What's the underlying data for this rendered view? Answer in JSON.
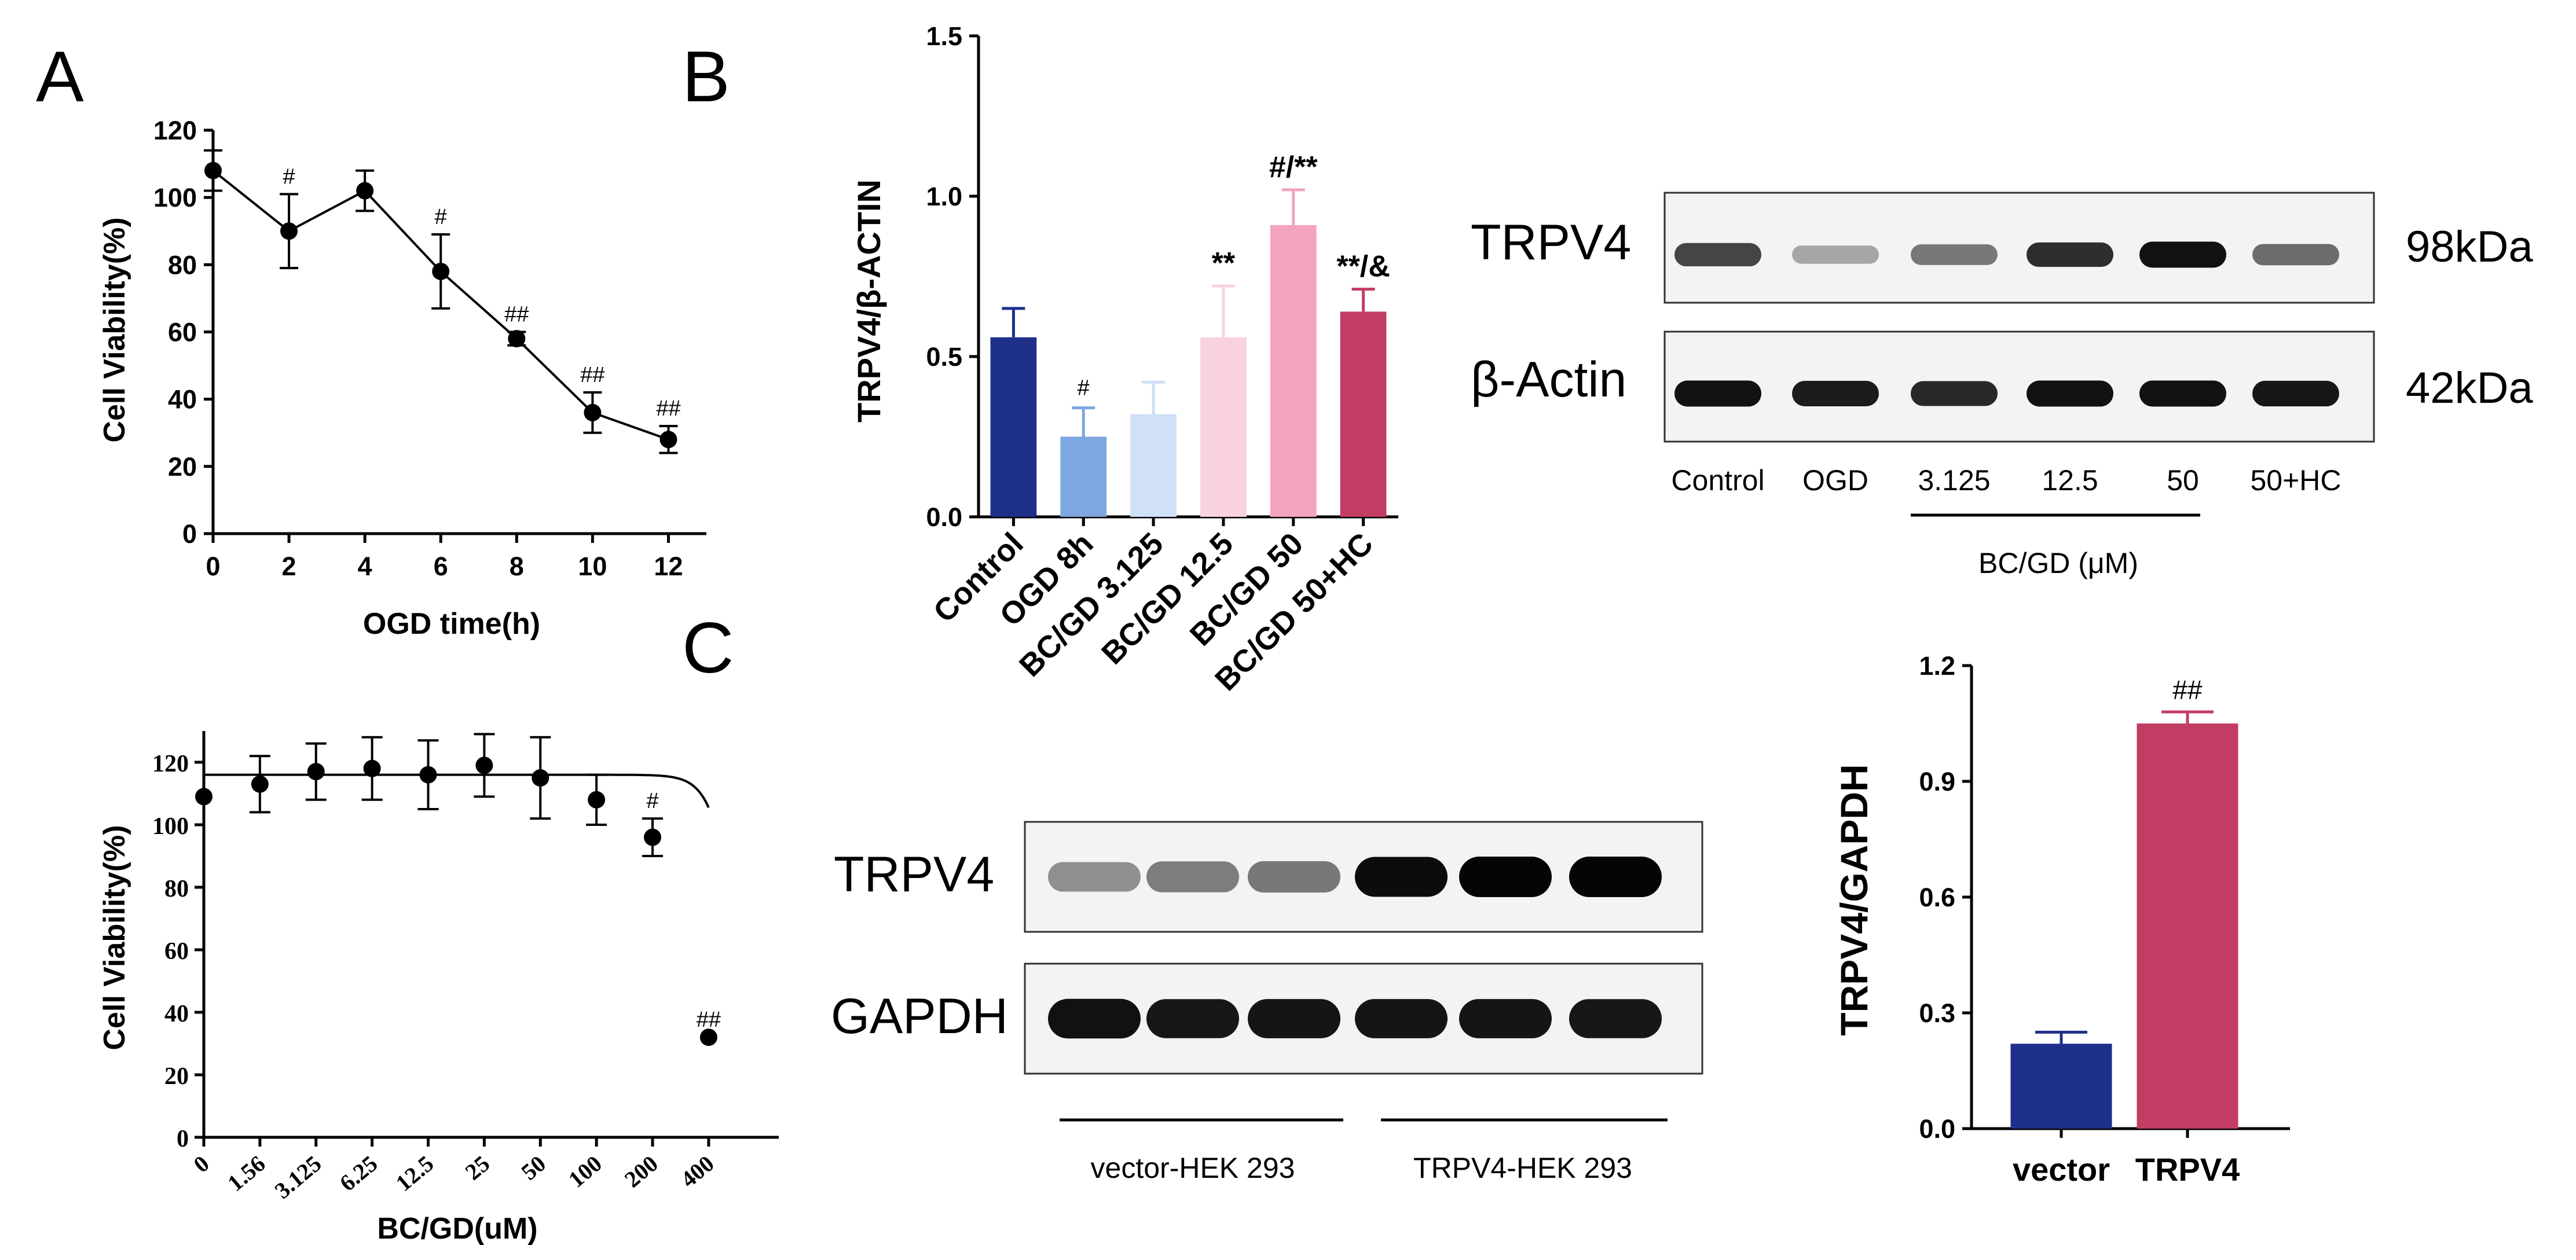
{
  "panels": {
    "A": "A",
    "B": "B",
    "C": "C"
  },
  "chart_data": [
    {
      "id": "A",
      "type": "line",
      "xlabel": "OGD time(h)",
      "ylabel": "Cell Viability(%)",
      "xlim": [
        0,
        13
      ],
      "ylim": [
        0,
        120
      ],
      "xticks": [
        "0",
        "2",
        "4",
        "6",
        "8",
        "10",
        "12"
      ],
      "yticks": [
        "0",
        "20",
        "40",
        "60",
        "80",
        "100",
        "120"
      ],
      "series": [
        {
          "x": [
            0,
            2,
            4,
            6,
            8,
            10,
            12
          ],
          "values": [
            108,
            90,
            102,
            78,
            58,
            36,
            28
          ],
          "errors": [
            6,
            11,
            6,
            11,
            2,
            6,
            4
          ],
          "annotations": [
            "",
            "#",
            "",
            "#",
            "##",
            "##",
            "##"
          ]
        }
      ]
    },
    {
      "id": "B",
      "type": "bar",
      "ylabel": "TRPV4/β-ACTIN",
      "ylim": [
        0,
        1.5
      ],
      "yticks": [
        "0.0",
        "0.5",
        "1.0",
        "1.5"
      ],
      "categories": [
        "Control",
        "OGD 8h",
        "BC/GD 3.125",
        "BC/GD 12.5",
        "BC/GD 50",
        "BC/GD 50+HC"
      ],
      "values": [
        0.56,
        0.25,
        0.32,
        0.56,
        0.91,
        0.64
      ],
      "errors": [
        0.09,
        0.09,
        0.1,
        0.16,
        0.11,
        0.07
      ],
      "colors": [
        "#1e2f8a",
        "#7ea6e0",
        "#cfe0f7",
        "#f8d3df",
        "#f3a3bd",
        "#c23d63"
      ],
      "annotations": [
        "",
        "#",
        "",
        "**",
        "#/**",
        "**/&"
      ]
    },
    {
      "id": "C",
      "type": "scatter",
      "xlabel": "BC/GD(uM)",
      "ylabel": "Cell Viability(%)",
      "ylim": [
        0,
        130
      ],
      "xticks": [
        "0",
        "1.56",
        "3.125",
        "6.25",
        "12.5",
        "25",
        "50",
        "100",
        "200",
        "400"
      ],
      "yticks": [
        "0",
        "20",
        "40",
        "60",
        "80",
        "100",
        "120"
      ],
      "series": [
        {
          "values": [
            109,
            113,
            117,
            118,
            116,
            119,
            115,
            108,
            96,
            32
          ],
          "errors": [
            0,
            9,
            9,
            10,
            11,
            10,
            13,
            8,
            6,
            0
          ],
          "annotations": [
            "",
            "",
            "",
            "",
            "",
            "",
            "",
            "",
            "#",
            "##"
          ]
        }
      ]
    },
    {
      "id": "D",
      "type": "bar",
      "ylabel": "TRPV4/GAPDH",
      "ylim": [
        0,
        1.2
      ],
      "yticks": [
        "0.0",
        "0.3",
        "0.6",
        "0.9",
        "1.2"
      ],
      "categories": [
        "vector",
        "TRPV4"
      ],
      "values": [
        0.22,
        1.05
      ],
      "errors": [
        0.03,
        0.03
      ],
      "colors": [
        "#1e2f8a",
        "#c23d63"
      ],
      "annotations": [
        "",
        "##"
      ]
    }
  ],
  "blots": {
    "top": {
      "rows": [
        {
          "label": "TRPV4",
          "kda": "98kDa",
          "intensity": [
            0.72,
            0.3,
            0.5,
            0.82,
            0.95,
            0.55
          ]
        },
        {
          "label": "β-Actin",
          "kda": "42kDa",
          "intensity": [
            0.95,
            0.9,
            0.85,
            0.95,
            0.95,
            0.92
          ]
        }
      ],
      "lanes": [
        "Control",
        "OGD",
        "3.125",
        "12.5",
        "50",
        "50+HC"
      ],
      "group_label": "BC/GD (μM)"
    },
    "bottom": {
      "rows": [
        {
          "label": "TRPV4",
          "intensity": [
            0.4,
            0.48,
            0.5,
            0.97,
            1.0,
            1.0
          ]
        },
        {
          "label": "GAPDH",
          "intensity": [
            0.95,
            0.92,
            0.93,
            0.93,
            0.93,
            0.92
          ]
        }
      ],
      "groups": [
        "vector-HEK 293",
        "TRPV4-HEK 293"
      ]
    }
  }
}
